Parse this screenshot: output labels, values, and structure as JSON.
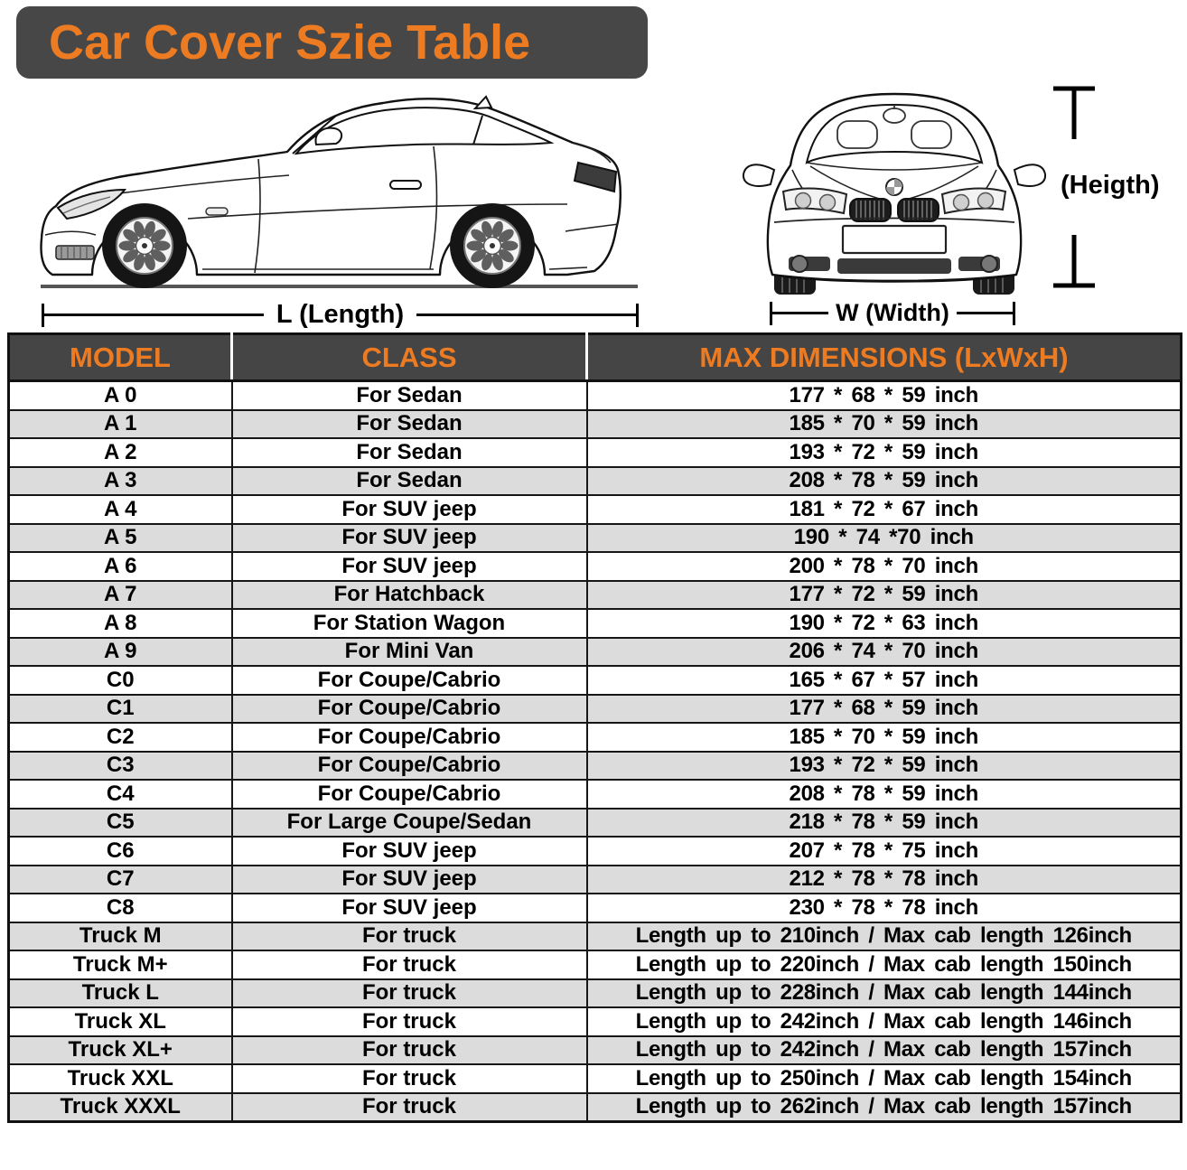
{
  "title": "Car Cover Szie Table",
  "diagram": {
    "length_label": "L (Length)",
    "width_label": "W (Width)",
    "height_label": "(Heigth)"
  },
  "colors": {
    "accent_orange": "#ED7B22",
    "banner_bg": "#474747",
    "header_bg": "#454545",
    "row_alt_gray": "#DCDCDC",
    "border_black": "#161616"
  },
  "table": {
    "headers": [
      "MODEL",
      "CLASS",
      "MAX DIMENSIONS (LxWxH)"
    ],
    "rows": [
      {
        "model": "A 0",
        "class": "For Sedan",
        "dims": "177 * 68 * 59 inch"
      },
      {
        "model": "A 1",
        "class": "For Sedan",
        "dims": "185 * 70 * 59 inch"
      },
      {
        "model": "A 2",
        "class": "For Sedan",
        "dims": "193 * 72 * 59 inch"
      },
      {
        "model": "A 3",
        "class": "For Sedan",
        "dims": "208 * 78 * 59 inch"
      },
      {
        "model": "A 4",
        "class": "For SUV jeep",
        "dims": "181 * 72 * 67 inch"
      },
      {
        "model": "A 5",
        "class": "For SUV jeep",
        "dims": "190 * 74  *70 inch"
      },
      {
        "model": "A 6",
        "class": "For SUV jeep",
        "dims": "200 * 78 * 70 inch"
      },
      {
        "model": "A 7",
        "class": "For Hatchback",
        "dims": "177 * 72 * 59 inch"
      },
      {
        "model": "A 8",
        "class": "For Station Wagon",
        "dims": "190 * 72 * 63 inch"
      },
      {
        "model": "A 9",
        "class": "For Mini Van",
        "dims": "206 * 74 * 70 inch"
      },
      {
        "model": "C0",
        "class": "For Coupe/Cabrio",
        "dims": "165 * 67 * 57 inch"
      },
      {
        "model": "C1",
        "class": "For Coupe/Cabrio",
        "dims": "177 * 68 * 59 inch"
      },
      {
        "model": "C2",
        "class": "For Coupe/Cabrio",
        "dims": "185 * 70 * 59 inch"
      },
      {
        "model": "C3",
        "class": "For Coupe/Cabrio",
        "dims": "193 * 72 * 59 inch"
      },
      {
        "model": "C4",
        "class": "For Coupe/Cabrio",
        "dims": "208 * 78 * 59 inch"
      },
      {
        "model": "C5",
        "class": "For Large Coupe/Sedan",
        "dims": "218 * 78 * 59 inch"
      },
      {
        "model": "C6",
        "class": "For SUV jeep",
        "dims": "207 * 78 * 75 inch"
      },
      {
        "model": "C7",
        "class": "For SUV jeep",
        "dims": "212 * 78 * 78 inch"
      },
      {
        "model": "C8",
        "class": "For SUV jeep",
        "dims": "230 * 78 * 78 inch"
      },
      {
        "model": "Truck M",
        "class": "For truck",
        "dims": "Length up to 210inch / Max cab length 126inch"
      },
      {
        "model": "Truck M+",
        "class": "For truck",
        "dims": "Length up to 220inch / Max cab length 150inch"
      },
      {
        "model": "Truck L",
        "class": "For truck",
        "dims": "Length up to 228inch / Max cab length 144inch"
      },
      {
        "model": "Truck XL",
        "class": "For truck",
        "dims": "Length up to 242inch / Max cab length 146inch"
      },
      {
        "model": "Truck XL+",
        "class": "For truck",
        "dims": "Length up to 242inch / Max cab length 157inch"
      },
      {
        "model": "Truck XXL",
        "class": "For truck",
        "dims": "Length up to 250inch / Max cab length 154inch"
      },
      {
        "model": "Truck XXXL",
        "class": "For truck",
        "dims": "Length up to 262inch / Max cab length 157inch"
      }
    ]
  }
}
